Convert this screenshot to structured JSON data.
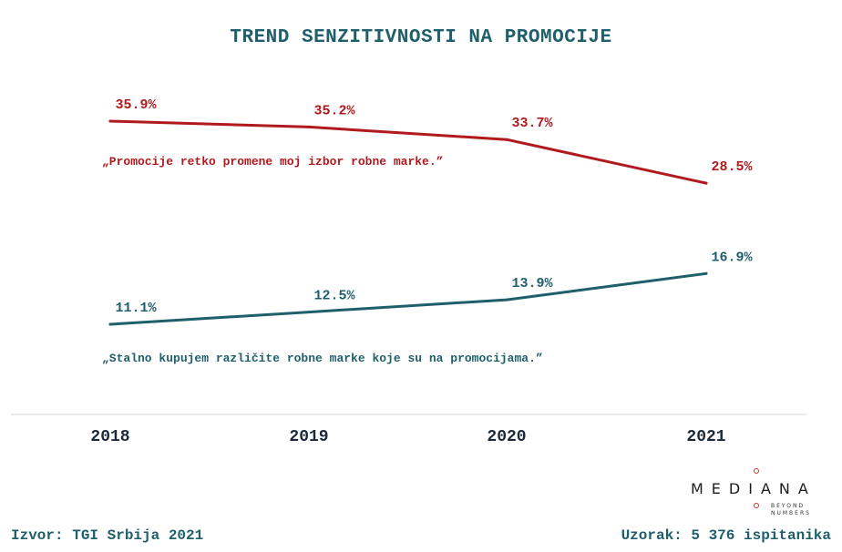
{
  "chart_data": {
    "type": "line",
    "title": "TREND SENZITIVNOSTI NA PROMOCIJE",
    "categories": [
      "2018",
      "2019",
      "2020",
      "2021"
    ],
    "value_labels": {
      "red": [
        "35.9%",
        "35.2%",
        "33.7%",
        "28.5%"
      ],
      "teal": [
        "11.1%",
        "12.5%",
        "13.9%",
        "16.9%"
      ]
    },
    "series": [
      {
        "values": [
          35.9,
          35.2,
          33.7,
          28.5
        ],
        "color": "#b0191e",
        "annotation": "„Promocije retko promene moj izbor robne marke.”"
      },
      {
        "values": [
          11.1,
          12.5,
          13.9,
          16.9
        ],
        "color": "#1f5f6b",
        "annotation": "„Stalno kupujem različite robne marke koje su na promocijama.”"
      }
    ],
    "xlabel": "",
    "ylabel": "",
    "grid": false,
    "legend": "none"
  },
  "footer": {
    "source": "Izvor: TGI Srbija 2021",
    "sample": "Uzorak: 5 376 ispitanika"
  },
  "logo": {
    "word": "MEDIANA",
    "tagline_1": "BEYOND",
    "tagline_2": "NUMBERS",
    "accent_color": "#c0392b"
  }
}
